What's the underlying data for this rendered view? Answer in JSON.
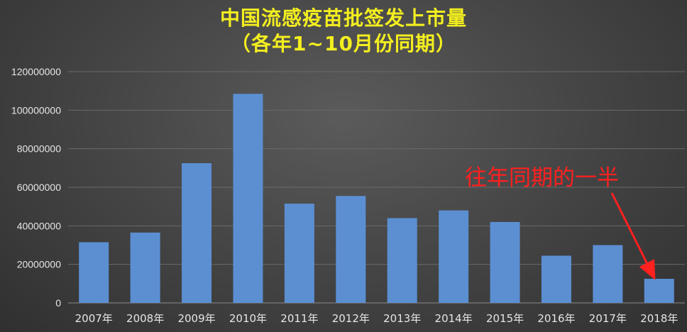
{
  "chart_data": {
    "type": "bar",
    "title": "中国流感疫苗批签发上市量",
    "subtitle": "（各年1~10月份同期）",
    "xlabel": "",
    "ylabel": "",
    "categories": [
      "2007年",
      "2008年",
      "2009年",
      "2010年",
      "2011年",
      "2012年",
      "2013年",
      "2014年",
      "2015年",
      "2016年",
      "2017年",
      "2018年"
    ],
    "values": [
      31500000,
      36500000,
      72500000,
      108500000,
      51500000,
      55500000,
      44000000,
      48000000,
      42000000,
      24500000,
      30000000,
      12500000
    ],
    "ylim": [
      0,
      120000000
    ],
    "yticks": [
      "0",
      "20000000",
      "40000000",
      "60000000",
      "80000000",
      "100000000",
      "120000000"
    ],
    "grid": true,
    "annotation": {
      "text": "往年同期的一半",
      "color": "#ff2020"
    },
    "bar_color": "#5b8fd2",
    "title_color": "#f3ee1f"
  }
}
